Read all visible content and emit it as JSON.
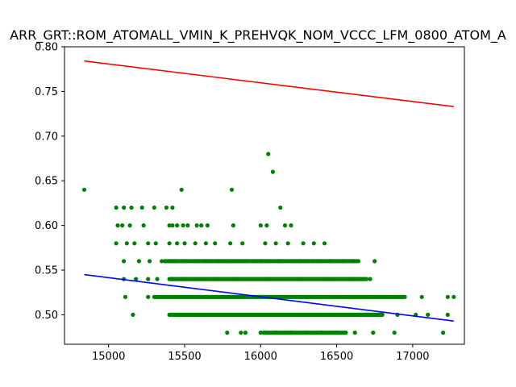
{
  "chart_data": {
    "type": "scatter",
    "title": "ARR_GRT::ROM_ATOMALL_VMIN_K_PREHVQK_NOM_VCCC_LFM_0800_ATOM_A",
    "xlabel": "",
    "ylabel": "",
    "xlim": [
      14710,
      17340
    ],
    "ylim": [
      0.467,
      0.8
    ],
    "x_ticks": [
      15000,
      15500,
      16000,
      16500,
      17000
    ],
    "x_tick_labels": [
      "15000",
      "15500",
      "16000",
      "16500",
      "17000"
    ],
    "y_ticks": [
      0.5,
      0.55,
      0.6,
      0.65,
      0.7,
      0.75,
      0.8
    ],
    "y_tick_labels": [
      "0.50",
      "0.55",
      "0.60",
      "0.65",
      "0.70",
      "0.75",
      "0.80"
    ],
    "grid": false,
    "colors": {
      "points": "#008000",
      "upper_line": "#ff0000",
      "fit_line": "#0000ff"
    },
    "points": [
      [
        14840,
        0.64
      ],
      [
        15050,
        0.62
      ],
      [
        15100,
        0.62
      ],
      [
        15150,
        0.62
      ],
      [
        15220,
        0.62
      ],
      [
        15300,
        0.62
      ],
      [
        15380,
        0.62
      ],
      [
        15420,
        0.62
      ],
      [
        15480,
        0.64
      ],
      [
        15810,
        0.64
      ],
      [
        16050,
        0.68
      ],
      [
        16080,
        0.66
      ],
      [
        16130,
        0.62
      ],
      [
        15060,
        0.6
      ],
      [
        15090,
        0.6
      ],
      [
        15140,
        0.6
      ],
      [
        15230,
        0.6
      ],
      [
        15400,
        0.6
      ],
      [
        15420,
        0.6
      ],
      [
        15450,
        0.6
      ],
      [
        15490,
        0.6
      ],
      [
        15520,
        0.6
      ],
      [
        15580,
        0.6
      ],
      [
        15610,
        0.6
      ],
      [
        15650,
        0.6
      ],
      [
        15820,
        0.6
      ],
      [
        16000,
        0.6
      ],
      [
        16040,
        0.6
      ],
      [
        16160,
        0.6
      ],
      [
        16200,
        0.6
      ],
      [
        15050,
        0.58
      ],
      [
        15120,
        0.58
      ],
      [
        15170,
        0.58
      ],
      [
        15260,
        0.58
      ],
      [
        15310,
        0.58
      ],
      [
        15400,
        0.58
      ],
      [
        15450,
        0.58
      ],
      [
        15500,
        0.58
      ],
      [
        15570,
        0.58
      ],
      [
        15640,
        0.58
      ],
      [
        15700,
        0.58
      ],
      [
        15800,
        0.58
      ],
      [
        15880,
        0.58
      ],
      [
        16030,
        0.58
      ],
      [
        16100,
        0.58
      ],
      [
        16180,
        0.58
      ],
      [
        16280,
        0.58
      ],
      [
        16350,
        0.58
      ],
      [
        16420,
        0.58
      ],
      [
        15100,
        0.56
      ],
      [
        15200,
        0.56
      ],
      [
        15270,
        0.56
      ],
      [
        15350,
        0.56
      ],
      [
        15440,
        0.56
      ],
      [
        15500,
        0.56
      ],
      [
        15640,
        0.56
      ],
      [
        15720,
        0.56
      ],
      [
        15800,
        0.56
      ],
      [
        15900,
        0.56
      ],
      [
        16000,
        0.56
      ],
      [
        16120,
        0.56
      ],
      [
        16260,
        0.56
      ],
      [
        16340,
        0.56
      ],
      [
        16460,
        0.56
      ],
      [
        16540,
        0.56
      ],
      [
        16610,
        0.56
      ],
      [
        16750,
        0.56
      ],
      [
        15100,
        0.54
      ],
      [
        15180,
        0.54
      ],
      [
        15260,
        0.54
      ],
      [
        15320,
        0.54
      ],
      [
        15420,
        0.54
      ],
      [
        15500,
        0.54
      ],
      [
        15600,
        0.54
      ],
      [
        15700,
        0.54
      ],
      [
        15850,
        0.54
      ],
      [
        16050,
        0.54
      ],
      [
        16250,
        0.54
      ],
      [
        16450,
        0.54
      ],
      [
        16600,
        0.54
      ],
      [
        16720,
        0.54
      ],
      [
        15110,
        0.52
      ],
      [
        15260,
        0.52
      ],
      [
        15380,
        0.52
      ],
      [
        15460,
        0.52
      ],
      [
        15600,
        0.52
      ],
      [
        15800,
        0.52
      ],
      [
        16000,
        0.52
      ],
      [
        16300,
        0.52
      ],
      [
        16500,
        0.52
      ],
      [
        16700,
        0.52
      ],
      [
        16900,
        0.52
      ],
      [
        17060,
        0.52
      ],
      [
        17230,
        0.52
      ],
      [
        17270,
        0.52
      ],
      [
        15160,
        0.5
      ],
      [
        15420,
        0.5
      ],
      [
        15600,
        0.5
      ],
      [
        15800,
        0.5
      ],
      [
        16100,
        0.5
      ],
      [
        16400,
        0.5
      ],
      [
        16700,
        0.5
      ],
      [
        16900,
        0.5
      ],
      [
        17020,
        0.5
      ],
      [
        17100,
        0.5
      ],
      [
        17230,
        0.5
      ],
      [
        15780,
        0.48
      ],
      [
        15870,
        0.48
      ],
      [
        15900,
        0.48
      ],
      [
        16000,
        0.48
      ],
      [
        16100,
        0.48
      ],
      [
        16200,
        0.48
      ],
      [
        16300,
        0.48
      ],
      [
        16400,
        0.48
      ],
      [
        16500,
        0.48
      ],
      [
        16620,
        0.48
      ],
      [
        16740,
        0.48
      ],
      [
        16880,
        0.48
      ],
      [
        17200,
        0.48
      ]
    ],
    "point_bands": [
      {
        "y": 0.56,
        "x_from": 15370,
        "x_to": 16650,
        "step": 12
      },
      {
        "y": 0.54,
        "x_from": 15400,
        "x_to": 16700,
        "step": 9
      },
      {
        "y": 0.52,
        "x_from": 15300,
        "x_to": 16950,
        "step": 8
      },
      {
        "y": 0.5,
        "x_from": 15400,
        "x_to": 16800,
        "step": 8
      },
      {
        "y": 0.48,
        "x_from": 16020,
        "x_to": 16570,
        "step": 12
      }
    ],
    "series": [
      {
        "kind": "line",
        "color": "#ff0000",
        "x": [
          14840,
          17270
        ],
        "y": [
          0.784,
          0.733
        ]
      },
      {
        "kind": "line",
        "color": "#0000ff",
        "x": [
          14840,
          17270
        ],
        "y": [
          0.545,
          0.493
        ]
      }
    ]
  }
}
